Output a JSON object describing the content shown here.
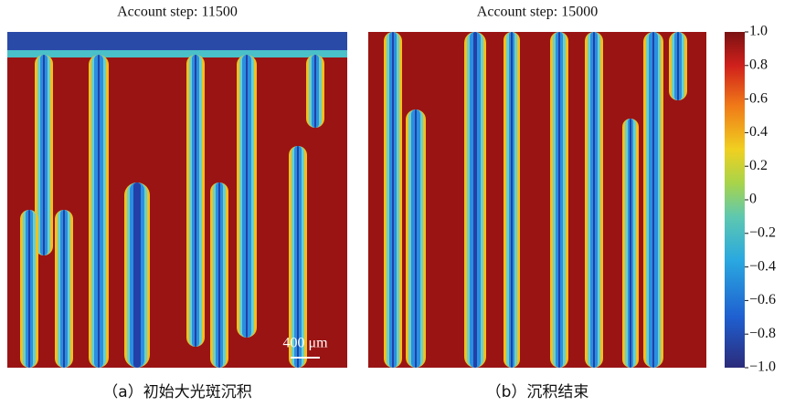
{
  "panels": [
    {
      "title": "Account step: 11500",
      "caption": "（a）初始大光斑沉积",
      "scale_bar": "400 μm"
    },
    {
      "title": "Account step: 15000",
      "caption": "（b）沉积结束"
    }
  ],
  "colorbar": {
    "ticks": [
      {
        "value": 1,
        "label": "1.0"
      },
      {
        "value": 0.8,
        "label": "0.8"
      },
      {
        "value": 0.6,
        "label": "0.6"
      },
      {
        "value": 0.4,
        "label": "0.4"
      },
      {
        "value": 0.2,
        "label": "0.2"
      },
      0,
      {
        "value": -0.2,
        "label": "−0.2"
      },
      {
        "value": -0.4,
        "label": "−0.4"
      },
      {
        "value": -0.6,
        "label": "−0.6"
      },
      {
        "value": -0.8,
        "label": "−0.8"
      },
      {
        "value": -1,
        "label": "−1.0"
      }
    ]
  }
}
